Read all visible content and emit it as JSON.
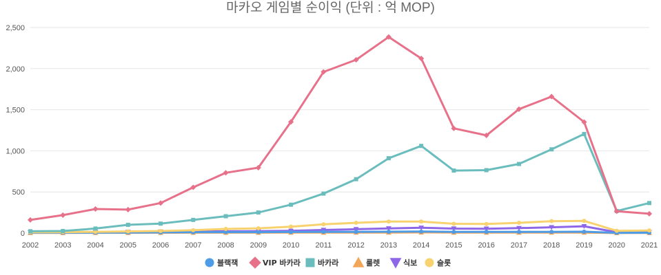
{
  "chart_data": {
    "type": "line",
    "title": "마카오 게임별 순이익 (단위 : 억 MOP)",
    "xlabel": "",
    "ylabel": "",
    "ylim": [
      0,
      2500
    ],
    "yticks": [
      0,
      500,
      1000,
      1500,
      2000,
      2500
    ],
    "ytick_labels": [
      "0",
      "500",
      "1,000",
      "1,500",
      "2,000",
      "2,500"
    ],
    "grid": "horizontal",
    "legend_position": "bottom",
    "x": [
      "2002",
      "2003",
      "2004",
      "2005",
      "2006",
      "2007",
      "2008",
      "2009",
      "2010",
      "2011",
      "2012",
      "2013",
      "2014",
      "2015",
      "2016",
      "2017",
      "2018",
      "2019",
      "2020",
      "2021"
    ],
    "series": [
      {
        "name": "블랙잭",
        "color": "#4e9be6",
        "marker": "circle",
        "values": [
          5,
          5,
          5,
          7,
          8,
          10,
          12,
          12,
          13,
          15,
          15,
          17,
          18,
          15,
          15,
          15,
          15,
          17,
          3,
          4
        ]
      },
      {
        "name": "VIP 바카라",
        "color": "#e8718a",
        "marker": "diamond",
        "values": [
          160,
          218,
          293,
          285,
          365,
          556,
          733,
          795,
          1352,
          1960,
          2107,
          2385,
          2123,
          1273,
          1188,
          1507,
          1660,
          1350,
          265,
          235
        ]
      },
      {
        "name": "바카라",
        "color": "#6bbdbd",
        "marker": "square",
        "values": [
          22,
          25,
          55,
          100,
          115,
          160,
          205,
          250,
          345,
          480,
          655,
          910,
          1060,
          760,
          765,
          840,
          1018,
          1205,
          268,
          365
        ]
      },
      {
        "name": "룰렛",
        "color": "#f2a65a",
        "marker": "triangle",
        "values": [
          2,
          2,
          3,
          3,
          4,
          5,
          5,
          5,
          6,
          6,
          7,
          7,
          8,
          6,
          6,
          6,
          7,
          7,
          1,
          2
        ]
      },
      {
        "name": "식보",
        "color": "#8e67e8",
        "marker": "triangle-down",
        "values": [
          8,
          8,
          10,
          14,
          17,
          20,
          22,
          23,
          27,
          38,
          47,
          57,
          65,
          54,
          53,
          60,
          70,
          83,
          10,
          12
        ]
      },
      {
        "name": "슬롯",
        "color": "#f7d26e",
        "marker": "circle",
        "values": [
          10,
          12,
          15,
          20,
          25,
          35,
          50,
          58,
          78,
          107,
          125,
          140,
          140,
          113,
          110,
          125,
          145,
          148,
          28,
          32
        ]
      }
    ]
  }
}
